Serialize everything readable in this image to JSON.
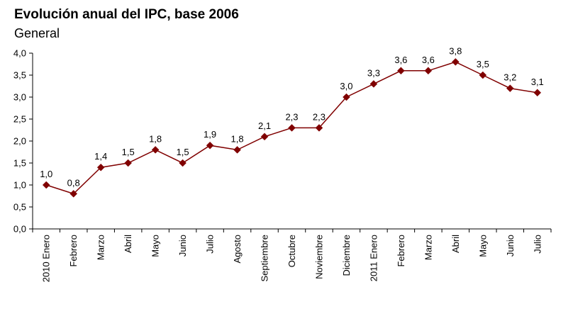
{
  "chart_data": {
    "type": "line",
    "title": "Evolución anual del IPC, base 2006",
    "subtitle": "General",
    "categories": [
      "2010 Enero",
      "Febrero",
      "Marzo",
      "Abril",
      "Mayo",
      "Junio",
      "Julio",
      "Agosto",
      "Septiembre",
      "Octubre",
      "Noviembre",
      "Diciembre",
      "2011 Enero",
      "Febrero",
      "Marzo",
      "Abril",
      "Mayo",
      "Junio",
      "Julio"
    ],
    "series": [
      {
        "values": [
          1.0,
          0.8,
          1.4,
          1.5,
          1.8,
          1.5,
          1.9,
          1.8,
          2.1,
          2.3,
          2.3,
          3.0,
          3.3,
          3.6,
          3.6,
          3.8,
          3.5,
          3.2,
          3.1
        ],
        "data_labels": [
          "1,0",
          "0,8",
          "1,4",
          "1,5",
          "1,8",
          "1,5",
          "1,9",
          "1,8",
          "2,1",
          "2,3",
          "2,3",
          "3,0",
          "3,3",
          "3,6",
          "3,6",
          "3,8",
          "3,5",
          "3,2",
          "3,1"
        ],
        "color": "#800000",
        "marker": "diamond"
      }
    ],
    "ylim": [
      0,
      4
    ],
    "yticks": [
      0,
      0.5,
      1,
      1.5,
      2,
      2.5,
      3,
      3.5,
      4
    ],
    "ytick_labels": [
      "0,0",
      "0,5",
      "1,0",
      "1,5",
      "2,0",
      "2,5",
      "3,0",
      "3,5",
      "4,0"
    ],
    "xlabel": "",
    "ylabel": "",
    "grid": false,
    "legend": "none"
  }
}
